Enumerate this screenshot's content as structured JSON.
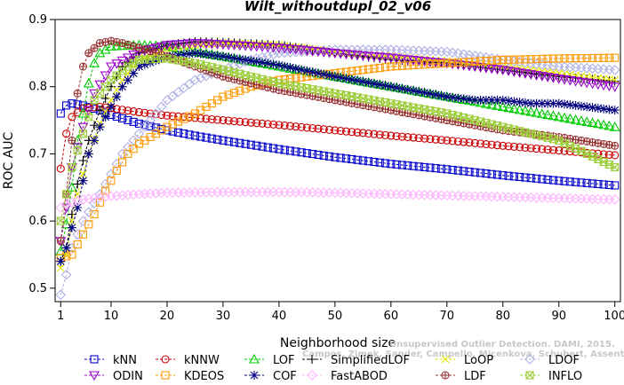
{
  "watermark": {
    "line1": "Unsupervised Outlier Detection. DAMI, 2015.",
    "line2": "Campos, Zimek, Sander, Campello, Micenkova, Schubert, Assent, Houle"
  },
  "chart_data": {
    "type": "line",
    "title": "Wilt_withoutdupl_02_v06",
    "xlabel": "Neighborhood size",
    "ylabel": "ROC AUC",
    "xlim": [
      0,
      101
    ],
    "ylim": [
      0.48,
      0.9
    ],
    "xticks": [
      1,
      10,
      20,
      30,
      40,
      50,
      60,
      70,
      80,
      90,
      100
    ],
    "yticks": [
      0.5,
      0.6,
      0.7,
      0.8,
      0.9
    ],
    "ytick_labels": [
      "0.5",
      "0.6",
      "0.7",
      "0.8",
      "0.9"
    ],
    "grid": false,
    "legend_position": "bottom",
    "series": [
      {
        "name": "kNN",
        "color": "#0000cc",
        "marker": "square",
        "points": [
          [
            1,
            0.76
          ],
          [
            2,
            0.772
          ],
          [
            3,
            0.775
          ],
          [
            5,
            0.772
          ],
          [
            8,
            0.765
          ],
          [
            10,
            0.758
          ],
          [
            15,
            0.745
          ],
          [
            20,
            0.735
          ],
          [
            25,
            0.727
          ],
          [
            30,
            0.72
          ],
          [
            40,
            0.707
          ],
          [
            50,
            0.695
          ],
          [
            60,
            0.685
          ],
          [
            70,
            0.677
          ],
          [
            80,
            0.668
          ],
          [
            90,
            0.66
          ],
          [
            100,
            0.653
          ]
        ]
      },
      {
        "name": "kNNW",
        "color": "#cc0000",
        "marker": "circle",
        "points": [
          [
            1,
            0.678
          ],
          [
            2,
            0.73
          ],
          [
            3,
            0.755
          ],
          [
            5,
            0.768
          ],
          [
            8,
            0.77
          ],
          [
            10,
            0.768
          ],
          [
            15,
            0.762
          ],
          [
            20,
            0.757
          ],
          [
            30,
            0.75
          ],
          [
            40,
            0.743
          ],
          [
            50,
            0.735
          ],
          [
            60,
            0.727
          ],
          [
            70,
            0.72
          ],
          [
            80,
            0.712
          ],
          [
            90,
            0.705
          ],
          [
            100,
            0.698
          ]
        ]
      },
      {
        "name": "LOF",
        "color": "#00cc00",
        "marker": "triangle-up",
        "points": [
          [
            1,
            0.555
          ],
          [
            2,
            0.595
          ],
          [
            3,
            0.65
          ],
          [
            4,
            0.72
          ],
          [
            5,
            0.76
          ],
          [
            6,
            0.805
          ],
          [
            7,
            0.835
          ],
          [
            8,
            0.85
          ],
          [
            10,
            0.86
          ],
          [
            15,
            0.862
          ],
          [
            20,
            0.86
          ],
          [
            25,
            0.852
          ],
          [
            30,
            0.845
          ],
          [
            40,
            0.83
          ],
          [
            50,
            0.815
          ],
          [
            60,
            0.8
          ],
          [
            70,
            0.785
          ],
          [
            80,
            0.77
          ],
          [
            90,
            0.755
          ],
          [
            100,
            0.74
          ]
        ]
      },
      {
        "name": "SimplifiedLOF",
        "color": "#000000",
        "marker": "plus",
        "points": [
          [
            1,
            0.54
          ],
          [
            2,
            0.56
          ],
          [
            3,
            0.61
          ],
          [
            4,
            0.655
          ],
          [
            5,
            0.69
          ],
          [
            6,
            0.72
          ],
          [
            8,
            0.765
          ],
          [
            10,
            0.8
          ],
          [
            12,
            0.83
          ],
          [
            15,
            0.85
          ],
          [
            20,
            0.862
          ],
          [
            25,
            0.867
          ],
          [
            30,
            0.866
          ],
          [
            40,
            0.862
          ],
          [
            50,
            0.85
          ],
          [
            60,
            0.84
          ],
          [
            70,
            0.835
          ],
          [
            80,
            0.825
          ],
          [
            90,
            0.815
          ],
          [
            100,
            0.808
          ]
        ]
      },
      {
        "name": "LoOP",
        "color": "#e6e600",
        "marker": "x",
        "points": [
          [
            1,
            0.53
          ],
          [
            2,
            0.55
          ],
          [
            3,
            0.6
          ],
          [
            4,
            0.64
          ],
          [
            5,
            0.67
          ],
          [
            6,
            0.7
          ],
          [
            8,
            0.745
          ],
          [
            10,
            0.78
          ],
          [
            12,
            0.81
          ],
          [
            15,
            0.84
          ],
          [
            20,
            0.855
          ],
          [
            25,
            0.862
          ],
          [
            30,
            0.865
          ],
          [
            40,
            0.862
          ],
          [
            50,
            0.852
          ],
          [
            60,
            0.845
          ],
          [
            70,
            0.838
          ],
          [
            80,
            0.83
          ],
          [
            90,
            0.82
          ],
          [
            100,
            0.81
          ]
        ]
      },
      {
        "name": "LDOF",
        "color": "#b0b0e6",
        "marker": "diamond",
        "points": [
          [
            1,
            0.49
          ],
          [
            2,
            0.52
          ],
          [
            3,
            0.56
          ],
          [
            5,
            0.6
          ],
          [
            8,
            0.64
          ],
          [
            10,
            0.67
          ],
          [
            12,
            0.7
          ],
          [
            15,
            0.73
          ],
          [
            18,
            0.76
          ],
          [
            20,
            0.78
          ],
          [
            25,
            0.81
          ],
          [
            30,
            0.825
          ],
          [
            35,
            0.84
          ],
          [
            40,
            0.85
          ],
          [
            50,
            0.855
          ],
          [
            60,
            0.855
          ],
          [
            70,
            0.852
          ],
          [
            80,
            0.84
          ],
          [
            90,
            0.83
          ],
          [
            100,
            0.825
          ]
        ]
      },
      {
        "name": "ODIN",
        "color": "#9900cc",
        "marker": "triangle-down",
        "points": [
          [
            1,
            0.57
          ],
          [
            2,
            0.62
          ],
          [
            3,
            0.68
          ],
          [
            5,
            0.74
          ],
          [
            7,
            0.79
          ],
          [
            10,
            0.83
          ],
          [
            15,
            0.852
          ],
          [
            20,
            0.862
          ],
          [
            25,
            0.865
          ],
          [
            30,
            0.863
          ],
          [
            40,
            0.858
          ],
          [
            50,
            0.85
          ],
          [
            60,
            0.843
          ],
          [
            70,
            0.835
          ],
          [
            80,
            0.825
          ],
          [
            90,
            0.812
          ],
          [
            100,
            0.8
          ]
        ]
      },
      {
        "name": "KDEOS",
        "color": "#ff9900",
        "marker": "square",
        "points": [
          [
            1,
            0.545
          ],
          [
            3,
            0.55
          ],
          [
            5,
            0.58
          ],
          [
            7,
            0.61
          ],
          [
            9,
            0.645
          ],
          [
            11,
            0.675
          ],
          [
            13,
            0.7
          ],
          [
            15,
            0.715
          ],
          [
            20,
            0.74
          ],
          [
            25,
            0.76
          ],
          [
            30,
            0.785
          ],
          [
            35,
            0.8
          ],
          [
            40,
            0.81
          ],
          [
            50,
            0.82
          ],
          [
            60,
            0.83
          ],
          [
            70,
            0.835
          ],
          [
            80,
            0.84
          ],
          [
            90,
            0.842
          ],
          [
            100,
            0.843
          ]
        ]
      },
      {
        "name": "COF",
        "color": "#000080",
        "marker": "asterisk",
        "points": [
          [
            1,
            0.54
          ],
          [
            2,
            0.56
          ],
          [
            3,
            0.59
          ],
          [
            4,
            0.62
          ],
          [
            5,
            0.66
          ],
          [
            6,
            0.7
          ],
          [
            8,
            0.74
          ],
          [
            10,
            0.77
          ],
          [
            12,
            0.8
          ],
          [
            15,
            0.83
          ],
          [
            20,
            0.845
          ],
          [
            25,
            0.85
          ],
          [
            30,
            0.845
          ],
          [
            40,
            0.832
          ],
          [
            50,
            0.815
          ],
          [
            60,
            0.8
          ],
          [
            70,
            0.785
          ],
          [
            75,
            0.78
          ],
          [
            80,
            0.78
          ],
          [
            85,
            0.775
          ],
          [
            90,
            0.775
          ],
          [
            95,
            0.77
          ],
          [
            100,
            0.765
          ]
        ]
      },
      {
        "name": "FastABOD",
        "color": "#ffb3ff",
        "marker": "diamond",
        "points": [
          [
            1,
            0.62
          ],
          [
            2,
            0.625
          ],
          [
            3,
            0.628
          ],
          [
            5,
            0.632
          ],
          [
            10,
            0.637
          ],
          [
            15,
            0.64
          ],
          [
            20,
            0.642
          ],
          [
            30,
            0.643
          ],
          [
            40,
            0.643
          ],
          [
            50,
            0.642
          ],
          [
            60,
            0.64
          ],
          [
            70,
            0.638
          ],
          [
            80,
            0.636
          ],
          [
            90,
            0.634
          ],
          [
            100,
            0.632
          ]
        ]
      },
      {
        "name": "LDF",
        "color": "#993333",
        "marker": "circle-plus",
        "points": [
          [
            1,
            0.57
          ],
          [
            2,
            0.64
          ],
          [
            3,
            0.72
          ],
          [
            4,
            0.79
          ],
          [
            5,
            0.83
          ],
          [
            6,
            0.85
          ],
          [
            8,
            0.865
          ],
          [
            10,
            0.868
          ],
          [
            12,
            0.865
          ],
          [
            15,
            0.858
          ],
          [
            20,
            0.845
          ],
          [
            25,
            0.83
          ],
          [
            30,
            0.815
          ],
          [
            40,
            0.795
          ],
          [
            50,
            0.78
          ],
          [
            60,
            0.765
          ],
          [
            70,
            0.75
          ],
          [
            80,
            0.735
          ],
          [
            90,
            0.725
          ],
          [
            100,
            0.712
          ]
        ]
      },
      {
        "name": "INFLO",
        "color": "#99cc33",
        "marker": "hourglass",
        "points": [
          [
            1,
            0.6
          ],
          [
            2,
            0.64
          ],
          [
            3,
            0.68
          ],
          [
            5,
            0.73
          ],
          [
            7,
            0.78
          ],
          [
            10,
            0.81
          ],
          [
            13,
            0.83
          ],
          [
            15,
            0.84
          ],
          [
            20,
            0.842
          ],
          [
            25,
            0.835
          ],
          [
            30,
            0.825
          ],
          [
            40,
            0.805
          ],
          [
            50,
            0.79
          ],
          [
            60,
            0.775
          ],
          [
            70,
            0.76
          ],
          [
            80,
            0.74
          ],
          [
            90,
            0.72
          ],
          [
            100,
            0.68
          ]
        ]
      }
    ]
  }
}
